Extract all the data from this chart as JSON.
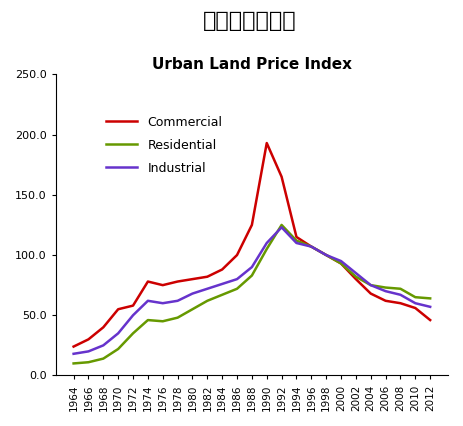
{
  "title_jp": "市街地価格指数",
  "title_en": "Urban Land Price Index",
  "years": [
    1964,
    1966,
    1968,
    1970,
    1972,
    1974,
    1976,
    1978,
    1980,
    1982,
    1984,
    1986,
    1988,
    1990,
    1992,
    1994,
    1996,
    1998,
    2000,
    2002,
    2004,
    2006,
    2008,
    2010,
    2012
  ],
  "commercial": [
    24,
    30,
    40,
    55,
    58,
    78,
    75,
    78,
    80,
    82,
    88,
    100,
    125,
    193,
    165,
    115,
    107,
    100,
    93,
    80,
    68,
    62,
    60,
    56,
    46
  ],
  "residential": [
    10,
    11,
    14,
    22,
    35,
    46,
    45,
    48,
    55,
    62,
    67,
    72,
    83,
    105,
    125,
    112,
    107,
    100,
    93,
    82,
    75,
    73,
    72,
    65,
    64
  ],
  "industrial": [
    18,
    20,
    25,
    35,
    50,
    62,
    60,
    62,
    68,
    72,
    76,
    80,
    90,
    110,
    123,
    110,
    107,
    100,
    95,
    85,
    75,
    70,
    67,
    60,
    57
  ],
  "commercial_color": "#CC0000",
  "residential_color": "#669900",
  "industrial_color": "#6633CC",
  "ylim": [
    0.0,
    250.0
  ],
  "yticks": [
    0.0,
    50.0,
    100.0,
    150.0,
    200.0,
    250.0
  ],
  "legend_labels": [
    "Commercial",
    "Residential",
    "Industrial"
  ],
  "bg_color": "#ffffff",
  "line_width": 1.8
}
